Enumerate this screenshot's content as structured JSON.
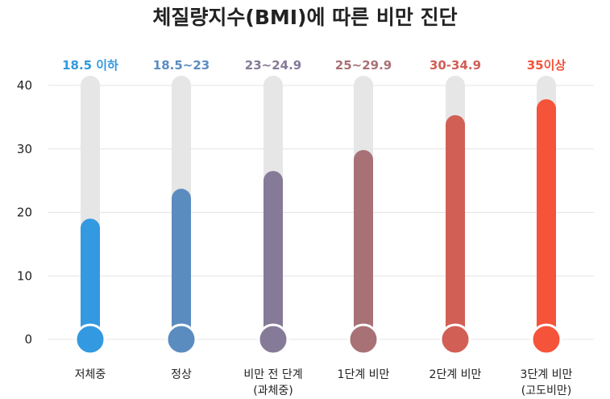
{
  "chart_data": {
    "type": "bar",
    "title": "체질량지수(BMI)에 따른 비만 진단",
    "ylim": [
      0,
      40
    ],
    "yticks": [
      "0",
      "10",
      "20",
      "30",
      "40"
    ],
    "grid": true,
    "categories": [
      {
        "label_lines": [
          "저체중"
        ],
        "range_label": "18.5 이하",
        "value": 17.5,
        "color": "#3399e0"
      },
      {
        "label_lines": [
          "정상"
        ],
        "range_label": "18.5~23",
        "value": 22.2,
        "color": "#5b8cc0"
      },
      {
        "label_lines": [
          "비만 전 단계",
          "(과체중)"
        ],
        "range_label": "23~24.9",
        "value": 25.0,
        "color": "#857a98"
      },
      {
        "label_lines": [
          "1단계 비만"
        ],
        "range_label": "25~29.9",
        "value": 28.3,
        "color": "#a87176"
      },
      {
        "label_lines": [
          "2단계 비만"
        ],
        "range_label": "30-34.9",
        "value": 33.8,
        "color": "#d15f55"
      },
      {
        "label_lines": [
          "3단계 비만",
          "(고도비만)"
        ],
        "range_label": "35이상",
        "value": 36.3,
        "color": "#f5533a"
      }
    ]
  }
}
